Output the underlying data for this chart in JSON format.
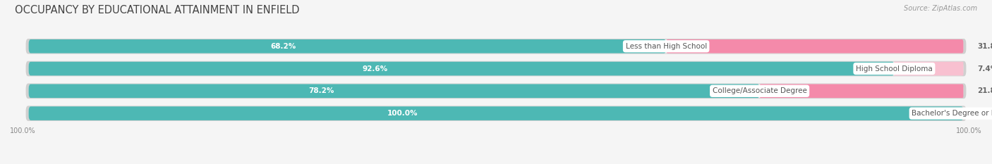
{
  "title": "OCCUPANCY BY EDUCATIONAL ATTAINMENT IN ENFIELD",
  "source": "Source: ZipAtlas.com",
  "categories": [
    "Less than High School",
    "High School Diploma",
    "College/Associate Degree",
    "Bachelor's Degree or higher"
  ],
  "owner_pct": [
    68.2,
    92.6,
    78.2,
    100.0
  ],
  "renter_pct": [
    31.8,
    7.4,
    21.8,
    0.0
  ],
  "owner_color": "#4db8b4",
  "renter_color": "#f48aaa",
  "renter_color_light": "#f8c0d0",
  "bar_bg_color": "#e0e0e0",
  "bar_bg_inner": "#f0f0f0",
  "background_color": "#f5f5f5",
  "title_color": "#444444",
  "source_color": "#999999",
  "label_color_white": "#ffffff",
  "label_color_dark": "#666666",
  "cat_label_color": "#555555",
  "legend_color": "#555555",
  "axis_label_color": "#888888",
  "title_fontsize": 10.5,
  "label_fontsize": 7.5,
  "cat_fontsize": 7.5,
  "legend_fontsize": 8,
  "source_fontsize": 7,
  "axis_label_fontsize": 7,
  "bar_height": 0.62,
  "x_left_label": "100.0%",
  "x_right_label": "100.0%",
  "total_bar_width": 100.0,
  "xlim_left": -2,
  "xlim_right": 102
}
